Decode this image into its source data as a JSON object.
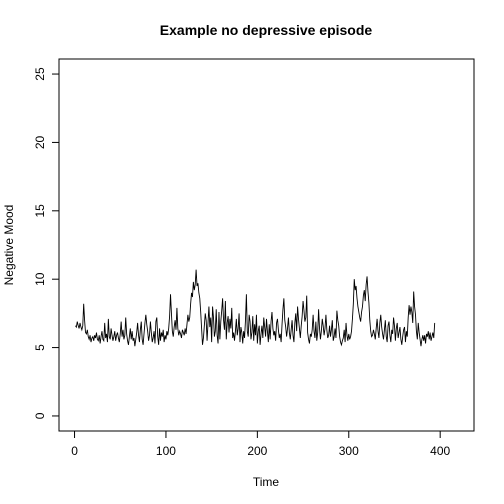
{
  "chart_data": {
    "type": "line",
    "title": "Example no depressive episode",
    "xlabel": "Time",
    "ylabel": "Negative Mood",
    "xlim": [
      -17,
      437
    ],
    "ylim": [
      -1.1,
      26.1
    ],
    "x_ticks": [
      0,
      100,
      200,
      300,
      400
    ],
    "y_ticks": [
      0,
      5,
      10,
      15,
      20,
      25
    ],
    "grid": false,
    "legend": "none",
    "line_color": "#000000",
    "series": [
      {
        "x_start": 1,
        "x_step": 1,
        "values": [
          6.6,
          6.5,
          6.9,
          6.6,
          6.4,
          6.8,
          6.5,
          6.3,
          6.6,
          8.2,
          7.0,
          6.1,
          6.0,
          6.3,
          5.8,
          5.6,
          5.9,
          5.4,
          5.7,
          5.8,
          5.5,
          5.9,
          5.7,
          6.1,
          5.6,
          5.5,
          5.9,
          5.3,
          5.8,
          6.2,
          5.6,
          5.5,
          6.8,
          5.7,
          6.0,
          5.4,
          7.1,
          5.8,
          5.6,
          6.4,
          5.9,
          5.5,
          5.8,
          6.2,
          5.5,
          5.9,
          6.1,
          5.7,
          5.4,
          6.0,
          6.9,
          5.8,
          6.3,
          5.6,
          5.9,
          7.2,
          6.0,
          5.5,
          5.2,
          5.8,
          6.4,
          5.6,
          6.2,
          5.5,
          5.7,
          5.1,
          5.6,
          6.1,
          6.8,
          5.9,
          5.4,
          6.3,
          6.9,
          5.6,
          5.2,
          6.0,
          6.8,
          7.4,
          6.7,
          6.2,
          5.5,
          5.9,
          6.9,
          6.1,
          5.4,
          5.7,
          6.2,
          5.3,
          6.9,
          7.2,
          5.8,
          5.2,
          6.4,
          5.5,
          6.1,
          5.8,
          6.3,
          5.4,
          5.9,
          5.6,
          6.2,
          5.9,
          6.4,
          7.3,
          8.9,
          7.5,
          6.2,
          5.8,
          6.5,
          7.0,
          6.3,
          7.9,
          6.4,
          5.9,
          6.2,
          6.0,
          5.7,
          6.3,
          6.1,
          5.9,
          6.4,
          6.0,
          6.7,
          7.4,
          6.9,
          7.2,
          8.2,
          9.0,
          8.7,
          9.8,
          9.2,
          9.6,
          10.7,
          9.5,
          9.7,
          9.0,
          8.6,
          7.6,
          6.4,
          5.2,
          5.7,
          6.6,
          7.5,
          7.0,
          5.5,
          6.8,
          8.0,
          6.5,
          7.2,
          5.4,
          8.0,
          7.2,
          5.8,
          6.2,
          7.8,
          5.9,
          5.3,
          7.6,
          5.6,
          6.9,
          7.7,
          8.6,
          7.0,
          6.3,
          8.4,
          5.6,
          6.8,
          7.3,
          6.1,
          7.1,
          6.4,
          7.9,
          5.7,
          6.1,
          5.5,
          6.2,
          7.1,
          5.9,
          6.4,
          7.5,
          5.4,
          6.5,
          6.1,
          5.3,
          6.2,
          5.7,
          7.0,
          8.9,
          6.2,
          5.8,
          7.4,
          6.9,
          5.6,
          6.1,
          7.3,
          5.5,
          6.7,
          5.9,
          7.4,
          5.3,
          6.2,
          6.6,
          5.2,
          6.0,
          6.6,
          5.7,
          7.2,
          6.5,
          5.8,
          7.1,
          6.2,
          5.4,
          6.7,
          5.6,
          6.9,
          7.6,
          6.4,
          5.9,
          6.2,
          5.5,
          6.8,
          7.1,
          6.3,
          5.7,
          6.0,
          5.4,
          6.7,
          7.8,
          8.6,
          7.0,
          6.5,
          5.8,
          6.4,
          7.2,
          6.1,
          5.6,
          6.3,
          7.0,
          5.9,
          5.4,
          6.8,
          7.5,
          6.2,
          8.0,
          7.1,
          6.4,
          5.7,
          6.6,
          7.3,
          8.4,
          7.7,
          6.9,
          7.2,
          8.8,
          6.1,
          5.6,
          5.3,
          6.0,
          5.8,
          6.3,
          7.4,
          6.2,
          5.7,
          6.9,
          5.5,
          6.1,
          7.8,
          6.4,
          5.6,
          6.2,
          7.1,
          6.6,
          5.9,
          6.4,
          7.4,
          6.3,
          5.7,
          5.9,
          6.6,
          5.8,
          6.3,
          7.0,
          5.5,
          5.8,
          6.4,
          5.7,
          7.7,
          7.0,
          6.6,
          5.8,
          5.4,
          5.2,
          5.5,
          5.7,
          6.3,
          5.4,
          6.8,
          5.9,
          5.5,
          6.0,
          5.6,
          5.8,
          6.2,
          7.1,
          8.2,
          10.0,
          9.2,
          9.5,
          8.6,
          8.0,
          7.6,
          7.2,
          6.9,
          7.6,
          8.0,
          8.8,
          9.2,
          8.4,
          9.6,
          10.2,
          9.1,
          8.3,
          7.0,
          6.2,
          5.8,
          5.9,
          6.3,
          6.0,
          5.6,
          6.4,
          7.1,
          6.2,
          5.7,
          6.8,
          7.4,
          6.5,
          6.0,
          5.6,
          6.3,
          7.0,
          5.8,
          5.4,
          6.6,
          6.9,
          5.9,
          5.4,
          6.3,
          6.0,
          7.2,
          6.6,
          5.5,
          6.4,
          6.8,
          5.7,
          6.1,
          6.5,
          5.6,
          5.2,
          5.8,
          6.3,
          6.5,
          5.4,
          6.2,
          5.8,
          7.2,
          8.1,
          7.4,
          8.0,
          7.6,
          6.8,
          9.1,
          8.0,
          7.4,
          6.2,
          5.6,
          6.8,
          6.1,
          5.6,
          5.1,
          5.6,
          5.9,
          5.5,
          5.9,
          5.3,
          6.0,
          5.8,
          6.2,
          5.6,
          6.1,
          5.5,
          5.8,
          6.1,
          5.7,
          6.8
        ]
      }
    ]
  }
}
